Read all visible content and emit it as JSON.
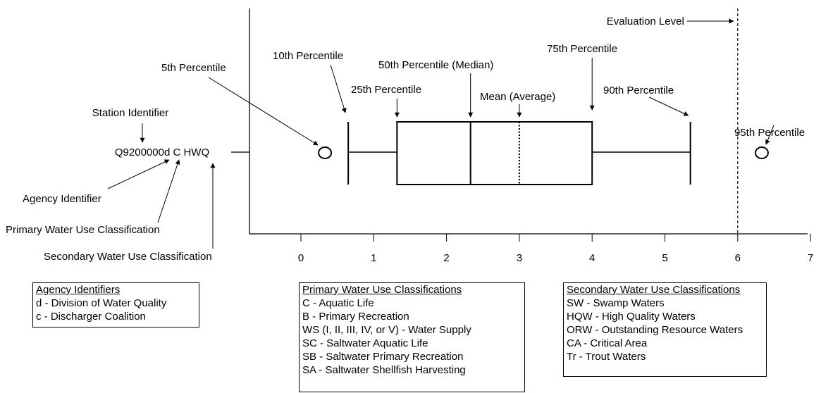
{
  "station_code": "Q9200000d C HWQ",
  "callouts": {
    "station_identifier": "Station Identifier",
    "agency_identifier": "Agency Identifier",
    "primary_classification": "Primary Water Use Classification",
    "secondary_classification": "Secondary Water Use Classification"
  },
  "chart_data": {
    "type": "boxplot",
    "x_ticks": [
      0,
      1,
      2,
      3,
      4,
      5,
      6,
      7
    ],
    "xlim": [
      0,
      7
    ],
    "statistics": {
      "p5": 0.33,
      "p10": 0.65,
      "p25": 1.32,
      "median": 2.33,
      "mean": 3.0,
      "p75": 4.0,
      "p90": 5.35,
      "p95": 6.33
    },
    "evaluation_level": 6,
    "labels": {
      "p5": "5th Percentile",
      "p10": "10th Percentile",
      "p25": "25th Percentile",
      "median": "50th Percentile (Median)",
      "mean": "Mean (Average)",
      "p75": "75th Percentile",
      "p90": "90th Percentile",
      "p95": "95th Percentile",
      "evaluation_level": "Evaluation Level"
    }
  },
  "legends": {
    "agency": {
      "title": "Agency Identifiers",
      "items": [
        "d - Division of Water Quality",
        "c - Discharger Coalition"
      ]
    },
    "primary": {
      "title": "Primary Water Use Classifications",
      "items": [
        "C - Aquatic Life",
        "B - Primary Recreation",
        "WS (I, II, III, IV, or V) - Water Supply",
        "SC - Saltwater Aquatic Life",
        "SB - Saltwater Primary Recreation",
        "SA - Saltwater Shellfish Harvesting"
      ]
    },
    "secondary": {
      "title": "Secondary Water Use Classifications",
      "items": [
        "SW - Swamp Waters",
        "HQW - High Quality Waters",
        "ORW - Outstanding Resource Waters",
        "CA - Critical Area",
        "Tr - Trout Waters"
      ]
    }
  }
}
